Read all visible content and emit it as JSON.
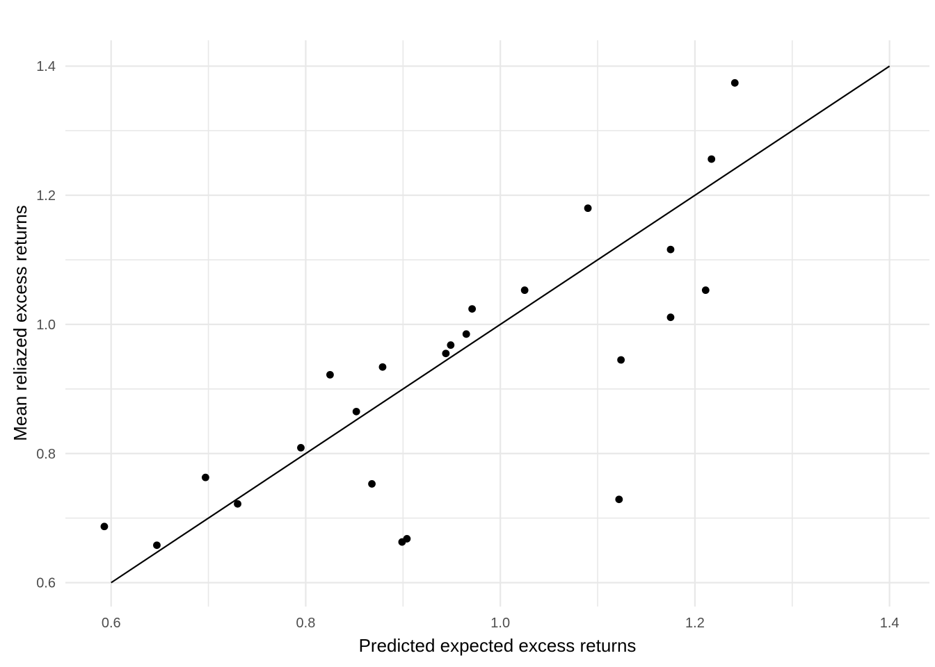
{
  "chart_data": {
    "type": "scatter",
    "title": "",
    "xlabel": "Predicted expected excess returns",
    "ylabel": "Mean reliazed excess returns",
    "xlim": [
      0.553,
      1.441
    ],
    "ylim": [
      0.563,
      1.44
    ],
    "grid": "major+minor",
    "legend": "none",
    "x_major_ticks": [
      0.6,
      0.8,
      1.0,
      1.2,
      1.4
    ],
    "x_tick_labels": [
      "0.6",
      "0.8",
      "1.0",
      "1.2",
      "1.4"
    ],
    "x_minor_ticks": [
      0.7,
      0.9,
      1.1,
      1.3
    ],
    "y_major_ticks": [
      0.6,
      0.8,
      1.0,
      1.2,
      1.4
    ],
    "y_tick_labels": [
      "0.6",
      "0.8",
      "1.0",
      "1.2",
      "1.4"
    ],
    "y_minor_ticks": [
      0.7,
      0.9,
      1.1,
      1.3
    ],
    "identity_line": {
      "x1": 0.6,
      "y1": 0.6,
      "x2": 1.4,
      "y2": 1.4
    },
    "points": [
      [
        0.593,
        0.687
      ],
      [
        0.647,
        0.658
      ],
      [
        0.697,
        0.763
      ],
      [
        0.73,
        0.722
      ],
      [
        0.795,
        0.809
      ],
      [
        0.825,
        0.922
      ],
      [
        0.852,
        0.865
      ],
      [
        0.868,
        0.753
      ],
      [
        0.879,
        0.934
      ],
      [
        0.899,
        0.663
      ],
      [
        0.904,
        0.668
      ],
      [
        0.944,
        0.955
      ],
      [
        0.949,
        0.968
      ],
      [
        0.965,
        0.985
      ],
      [
        0.971,
        1.024
      ],
      [
        1.025,
        1.053
      ],
      [
        1.09,
        1.18
      ],
      [
        1.122,
        0.729
      ],
      [
        1.124,
        0.945
      ],
      [
        1.175,
        1.011
      ],
      [
        1.175,
        1.116
      ],
      [
        1.211,
        1.053
      ],
      [
        1.217,
        1.256
      ],
      [
        1.241,
        1.374
      ]
    ],
    "style": {
      "background": "#ffffff",
      "grid_color": "#e8e8e8",
      "point_color": "#000000",
      "line_color": "#000000",
      "tick_label_color": "#4d4d4d",
      "axis_title_color": "#000000"
    }
  }
}
